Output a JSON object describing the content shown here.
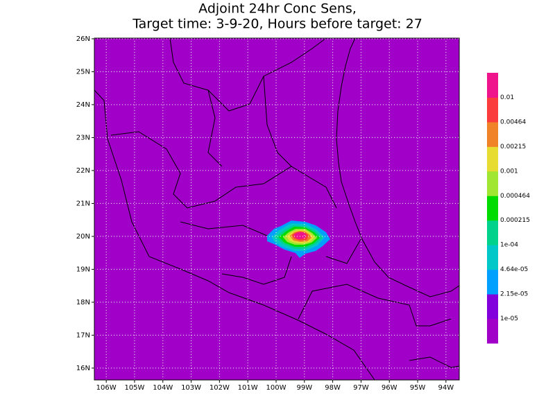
{
  "header": {
    "title_line1": "Adjoint 24hr Conc Sens,",
    "title_line2": "Target time: 3-9-20, Hours before target: 27"
  },
  "map": {
    "fill": "#a000c8",
    "grid": true,
    "xlim": [
      -106.42,
      -93.53
    ],
    "ylim": [
      15.64,
      26.02
    ],
    "xticks": [
      {
        "value": -106,
        "label": "106W"
      },
      {
        "value": -105,
        "label": "105W"
      },
      {
        "value": -104,
        "label": "104W"
      },
      {
        "value": -103,
        "label": "103W"
      },
      {
        "value": -102,
        "label": "102W"
      },
      {
        "value": -101,
        "label": "101W"
      },
      {
        "value": -100,
        "label": "100W"
      },
      {
        "value": -99,
        "label": "99W"
      },
      {
        "value": -98,
        "label": "98W"
      },
      {
        "value": -97,
        "label": "97W"
      },
      {
        "value": -96,
        "label": "96W"
      },
      {
        "value": -95,
        "label": "95W"
      },
      {
        "value": -94,
        "label": "94W"
      }
    ],
    "yticks": [
      {
        "value": 16,
        "label": "16N"
      },
      {
        "value": 17,
        "label": "17N"
      },
      {
        "value": 18,
        "label": "18N"
      },
      {
        "value": 19,
        "label": "19N"
      },
      {
        "value": 20,
        "label": "20N"
      },
      {
        "value": 21,
        "label": "21N"
      },
      {
        "value": 22,
        "label": "22N"
      },
      {
        "value": 23,
        "label": "23N"
      },
      {
        "value": 24,
        "label": "24N"
      },
      {
        "value": 25,
        "label": "25N"
      },
      {
        "value": 26,
        "label": "26N"
      }
    ]
  },
  "colorbar": {
    "colors": [
      "#a000c8",
      "#8200dc",
      "#00a0ff",
      "#00c8c8",
      "#00d28c",
      "#00dc00",
      "#a0e632",
      "#e6dc32",
      "#f08228",
      "#fa3c3c",
      "#f0148c"
    ],
    "levels": [
      {
        "value": 1e-05,
        "label": "1e-05"
      },
      {
        "value": 2.15e-05,
        "label": "2.15e-05"
      },
      {
        "value": 4.64e-05,
        "label": "4.64e-05"
      },
      {
        "value": 0.0001,
        "label": "1e-04"
      },
      0.000215,
      0.000464,
      0.001,
      0.00215,
      0.00464,
      0.01
    ]
  }
}
